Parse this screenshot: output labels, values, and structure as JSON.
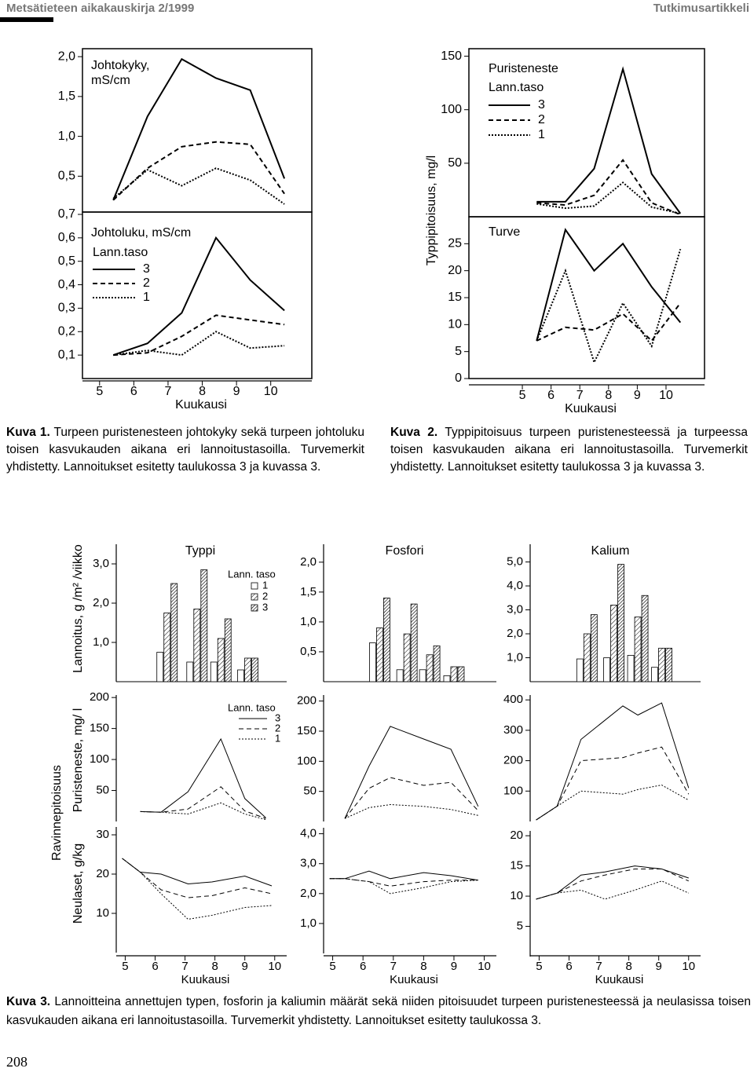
{
  "header": {
    "journal": "Metsätieteen aikakauskirja 2/1999",
    "section": "Tutkimusartikkeli"
  },
  "captions": [
    {
      "label": "Kuva 1.",
      "text": "Turpeen puristenesteen johtokyky sekä turpeen johtoluku toisen kasvukauden aikana eri lannoitustasoilla. Turvemerkit yhdistetty. Lannoitukset esitetty taulukossa 3 ja kuvassa 3."
    },
    {
      "label": "Kuva 2.",
      "text": "Typpipitoisuus turpeen puristenesteessä ja turpeessa toisen kasvukauden aikana eri lannoitustasoilla. Turvemerkit yhdistetty. Lannoitukset esitetty taulukossa 3 ja kuvassa 3."
    },
    {
      "label": "Kuva 3.",
      "text": "Lannoitteina annettujen typen, fosforin ja kaliumin määrät sekä niiden pitoisuudet turpeen puristenesteessä ja neulasissa toisen kasvukauden aikana eri lannoitustasoilla. Turvemerkit yhdistetty. Lannoitukset esitetty taulukossa 3."
    }
  ],
  "page_number": "208",
  "chart_data": [
    {
      "type": "line",
      "title": [
        "Johtokyky,",
        "mS/cm"
      ],
      "frame": true,
      "color": "#000000",
      "x": [
        5.4,
        6.4,
        7.4,
        8.4,
        9.4,
        10.4
      ],
      "xlim": [
        4.5,
        11.2
      ],
      "ylim": [
        0.05,
        2.1
      ],
      "yticks": [
        {
          "value": 0.5,
          "label": "0,5"
        },
        {
          "value": 1,
          "label": "1,0"
        },
        {
          "value": 1.5,
          "label": "1,5"
        },
        {
          "value": 2,
          "label": "2,0"
        }
      ],
      "series": [
        {
          "dash": "solid",
          "values": [
            0.2,
            1.25,
            1.97,
            1.73,
            1.58,
            0.47
          ]
        },
        {
          "dash": "dashed",
          "values": [
            0.2,
            0.6,
            0.87,
            0.93,
            0.9,
            0.28
          ]
        },
        {
          "dash": "dotted",
          "values": [
            0.22,
            0.58,
            0.38,
            0.6,
            0.45,
            0.15
          ]
        }
      ]
    },
    {
      "type": "line",
      "title": "Johtoluku, mS/cm",
      "legend_title": "Lann.taso",
      "xlabel": "Kuukausi",
      "frame": true,
      "color": "#000000",
      "x": [
        5.4,
        6.4,
        7.4,
        8.4,
        9.4,
        10.4
      ],
      "xlim": [
        4.5,
        11.2
      ],
      "xticks": [
        5,
        6,
        7,
        8,
        9,
        10
      ],
      "ylim": [
        0,
        0.71
      ],
      "yticks": [
        {
          "value": 0.1,
          "label": "0,1"
        },
        {
          "value": 0.2,
          "label": "0,2"
        },
        {
          "value": 0.3,
          "label": "0,3"
        },
        {
          "value": 0.4,
          "label": "0,4"
        },
        {
          "value": 0.5,
          "label": "0,5"
        },
        {
          "value": 0.6,
          "label": "0,6"
        },
        {
          "value": 0.7,
          "label": "0,7"
        }
      ],
      "series": [
        {
          "name": "3",
          "dash": "solid",
          "values": [
            0.1,
            0.15,
            0.28,
            0.6,
            0.42,
            0.29
          ]
        },
        {
          "name": "2",
          "dash": "dashed",
          "values": [
            0.1,
            0.11,
            0.18,
            0.27,
            0.25,
            0.23
          ]
        },
        {
          "name": "1",
          "dash": "dotted",
          "values": [
            0.1,
            0.12,
            0.1,
            0.2,
            0.13,
            0.14
          ]
        }
      ]
    },
    {
      "type": "line",
      "title": "Puristeneste",
      "legend_title": "Lann.taso",
      "ylabel": "Typpipitoisuus, mg/l",
      "frame": true,
      "color": "#000000",
      "x": [
        5.5,
        6.5,
        7.5,
        8.5,
        9.5,
        10.5
      ],
      "xlim": [
        3.14,
        11.34
      ],
      "ylim": [
        0,
        157
      ],
      "yticks": [
        50,
        100,
        150
      ],
      "series": [
        {
          "name": "3",
          "dash": "solid",
          "values": [
            14,
            14,
            45,
            138,
            40,
            3
          ]
        },
        {
          "name": "2",
          "dash": "dashed",
          "values": [
            13,
            11,
            20,
            53,
            13,
            2
          ]
        },
        {
          "name": "1",
          "dash": "dotted",
          "values": [
            12,
            8,
            10,
            32,
            9,
            3
          ]
        }
      ]
    },
    {
      "type": "line",
      "title": "Turve",
      "xlabel": "Kuukausi",
      "frame": true,
      "color": "#000000",
      "x": [
        5.5,
        6.5,
        7.5,
        8.5,
        9.5,
        10.5
      ],
      "xlim": [
        3.14,
        11.34
      ],
      "xticks": [
        5,
        6,
        7,
        8,
        9,
        10
      ],
      "ylim": [
        0,
        30
      ],
      "yticks": [
        0,
        5,
        10,
        15,
        20,
        25
      ],
      "series": [
        {
          "dash": "solid",
          "values": [
            7,
            27.6,
            20,
            25,
            17,
            10.4
          ]
        },
        {
          "dash": "dashed",
          "values": [
            7,
            9.5,
            9,
            12,
            7,
            14
          ]
        },
        {
          "dash": "dotted",
          "values": [
            7,
            20,
            3,
            14,
            6,
            24
          ]
        }
      ]
    },
    {
      "type": "bar",
      "title": "Typpi",
      "ylabel": "Lannoitus, g /m² /viikko",
      "legend_title": "Lann. taso",
      "color": "#000000",
      "x": [
        6.4,
        7.4,
        8.2,
        9.1
      ],
      "xlim": [
        4.7,
        10.4
      ],
      "ylim": [
        0,
        3.5
      ],
      "yticks": [
        {
          "value": 1,
          "label": "1,0"
        },
        {
          "value": 2,
          "label": "2,0"
        },
        {
          "value": 3,
          "label": "3,0"
        }
      ],
      "series": [
        {
          "name": "1",
          "hatch": "none",
          "values": [
            0.75,
            0.5,
            0.5,
            0.3
          ]
        },
        {
          "name": "2",
          "hatch": "sparse",
          "values": [
            1.75,
            1.85,
            1.1,
            0.6
          ]
        },
        {
          "name": "3",
          "hatch": "dense",
          "values": [
            2.5,
            2.85,
            1.6,
            0.6
          ]
        }
      ]
    },
    {
      "type": "bar",
      "title": "Fosfori",
      "color": "#000000",
      "x": [
        6.55,
        7.45,
        8.2,
        9.0
      ],
      "xlim": [
        4.7,
        10.4
      ],
      "ylim": [
        0,
        2.3
      ],
      "yticks": [
        {
          "value": 0.5,
          "label": "0,5"
        },
        {
          "value": 1,
          "label": "1,0"
        },
        {
          "value": 1.5,
          "label": "1,5"
        },
        {
          "value": 2,
          "label": "2,0"
        }
      ],
      "series": [
        {
          "hatch": "none",
          "values": [
            0.65,
            0.2,
            0.2,
            0.1
          ]
        },
        {
          "hatch": "sparse",
          "values": [
            0.9,
            0.8,
            0.45,
            0.25
          ]
        },
        {
          "hatch": "dense",
          "values": [
            1.4,
            1.3,
            0.6,
            0.25
          ]
        }
      ]
    },
    {
      "type": "bar",
      "title": "Kalium",
      "color": "#000000",
      "x": [
        6.6,
        7.5,
        8.3,
        9.1
      ],
      "xlim": [
        4.7,
        10.4
      ],
      "ylim": [
        0,
        5.74
      ],
      "yticks": [
        {
          "value": 1,
          "label": "1,0"
        },
        {
          "value": 2,
          "label": "2,0"
        },
        {
          "value": 3,
          "label": "3,0"
        },
        {
          "value": 4,
          "label": "4,0"
        },
        {
          "value": 5,
          "label": "5,0"
        }
      ],
      "series": [
        {
          "hatch": "none",
          "values": [
            0.95,
            1.0,
            1.1,
            0.6
          ]
        },
        {
          "hatch": "sparse",
          "values": [
            2.0,
            3.2,
            2.7,
            1.4
          ]
        },
        {
          "hatch": "dense",
          "values": [
            2.8,
            4.9,
            3.6,
            1.4
          ]
        }
      ]
    },
    {
      "type": "line",
      "ylabel": "Puristeneste, mg/ l",
      "group_label": "Ravinnepitoisuus",
      "legend_title": "Lann. taso",
      "color": "#000000",
      "x": [
        5.5,
        6.2,
        7.1,
        8.2,
        9.0,
        9.7
      ],
      "xlim": [
        4.7,
        10.4
      ],
      "ylim": [
        0,
        204
      ],
      "yticks": [
        50,
        100,
        150,
        200
      ],
      "series": [
        {
          "name": "3",
          "dash": "solid",
          "values": [
            16,
            15,
            48,
            133,
            37,
            6
          ]
        },
        {
          "name": "2",
          "dash": "dashed",
          "values": [
            16,
            15,
            20,
            56,
            17,
            5
          ]
        },
        {
          "name": "1",
          "dash": "dotted",
          "values": [
            16,
            15,
            12,
            30,
            12,
            3
          ]
        }
      ]
    },
    {
      "type": "line",
      "color": "#000000",
      "x": [
        5.4,
        6.2,
        6.9,
        8.0,
        8.9,
        9.8
      ],
      "xlim": [
        4.7,
        10.4
      ],
      "ylim": [
        0,
        210
      ],
      "yticks": [
        50,
        100,
        150,
        200
      ],
      "series": [
        {
          "dash": "solid",
          "values": [
            5,
            92,
            158,
            137,
            120,
            25
          ]
        },
        {
          "dash": "dashed",
          "values": [
            5,
            55,
            73,
            60,
            65,
            18
          ]
        },
        {
          "dash": "dotted",
          "values": [
            5,
            23,
            28,
            25,
            20,
            10
          ]
        }
      ]
    },
    {
      "type": "line",
      "color": "#000000",
      "x": [
        4.9,
        5.6,
        6.4,
        7.8,
        8.3,
        9.1,
        10
      ],
      "xlim": [
        4.7,
        10.4
      ],
      "ylim": [
        0,
        416
      ],
      "yticks": [
        100,
        200,
        300,
        400
      ],
      "series": [
        {
          "dash": "solid",
          "values": [
            5,
            50,
            270,
            380,
            350,
            390,
            110
          ]
        },
        {
          "dash": "dashed",
          "values": [
            5,
            50,
            200,
            210,
            225,
            245,
            90
          ]
        },
        {
          "dash": "dotted",
          "values": [
            5,
            50,
            100,
            90,
            105,
            120,
            70
          ]
        }
      ]
    },
    {
      "type": "line",
      "ylabel": "Neulaset, g/kg",
      "xlabel": "Kuukausi",
      "color": "#000000",
      "x": [
        4.9,
        5.5,
        6.2,
        7.1,
        7.9,
        9.0,
        9.9
      ],
      "xlim": [
        4.7,
        10.4
      ],
      "xticks": [
        5,
        6,
        7,
        8,
        9,
        10
      ],
      "ylim": [
        0,
        32
      ],
      "yticks": [
        10,
        20,
        30
      ],
      "series": [
        {
          "dash": "solid",
          "values": [
            24,
            20.5,
            20,
            17.5,
            18,
            19.5,
            17
          ]
        },
        {
          "dash": "dashed",
          "values": [
            24,
            20.5,
            16,
            14,
            14.5,
            16.5,
            15
          ]
        },
        {
          "dash": "dotted",
          "values": [
            24,
            20.5,
            15,
            8.5,
            9.5,
            11.5,
            12
          ]
        }
      ]
    },
    {
      "type": "line",
      "xlabel": "Kuukausi",
      "color": "#000000",
      "x": [
        4.9,
        5.4,
        6.2,
        6.9,
        8.0,
        8.9,
        9.8
      ],
      "xlim": [
        4.7,
        10.4
      ],
      "xticks": [
        5,
        6,
        7,
        8,
        9,
        10
      ],
      "ylim": [
        0,
        4.2
      ],
      "yticks": [
        {
          "value": 1,
          "label": "1,0"
        },
        {
          "value": 2,
          "label": "2,0"
        },
        {
          "value": 3,
          "label": "3,0"
        },
        {
          "value": 4,
          "label": "4,0"
        }
      ],
      "series": [
        {
          "dash": "solid",
          "values": [
            2.5,
            2.5,
            2.75,
            2.5,
            2.7,
            2.6,
            2.45
          ]
        },
        {
          "dash": "dashed",
          "values": [
            2.5,
            2.5,
            2.4,
            2.25,
            2.4,
            2.45,
            2.45
          ]
        },
        {
          "dash": "dotted",
          "values": [
            2.5,
            2.5,
            2.4,
            2.0,
            2.2,
            2.4,
            2.45
          ]
        }
      ]
    },
    {
      "type": "line",
      "xlabel": "Kuukausi",
      "color": "#000000",
      "x": [
        4.9,
        5.6,
        6.4,
        7.2,
        8.2,
        9.1,
        10
      ],
      "xlim": [
        4.7,
        10.4
      ],
      "xticks": [
        5,
        6,
        7,
        8,
        9,
        10
      ],
      "ylim": [
        0,
        20.8
      ],
      "yticks": [
        5,
        10,
        15,
        20
      ],
      "series": [
        {
          "dash": "solid",
          "values": [
            9.5,
            10.5,
            13.5,
            14,
            15,
            14.5,
            13
          ]
        },
        {
          "dash": "dashed",
          "values": [
            9.5,
            10.5,
            12.5,
            13.5,
            14.5,
            14.5,
            12.5
          ]
        },
        {
          "dash": "dotted",
          "values": [
            9.5,
            10.5,
            11,
            9.5,
            11,
            12.5,
            10.5
          ]
        }
      ]
    }
  ]
}
